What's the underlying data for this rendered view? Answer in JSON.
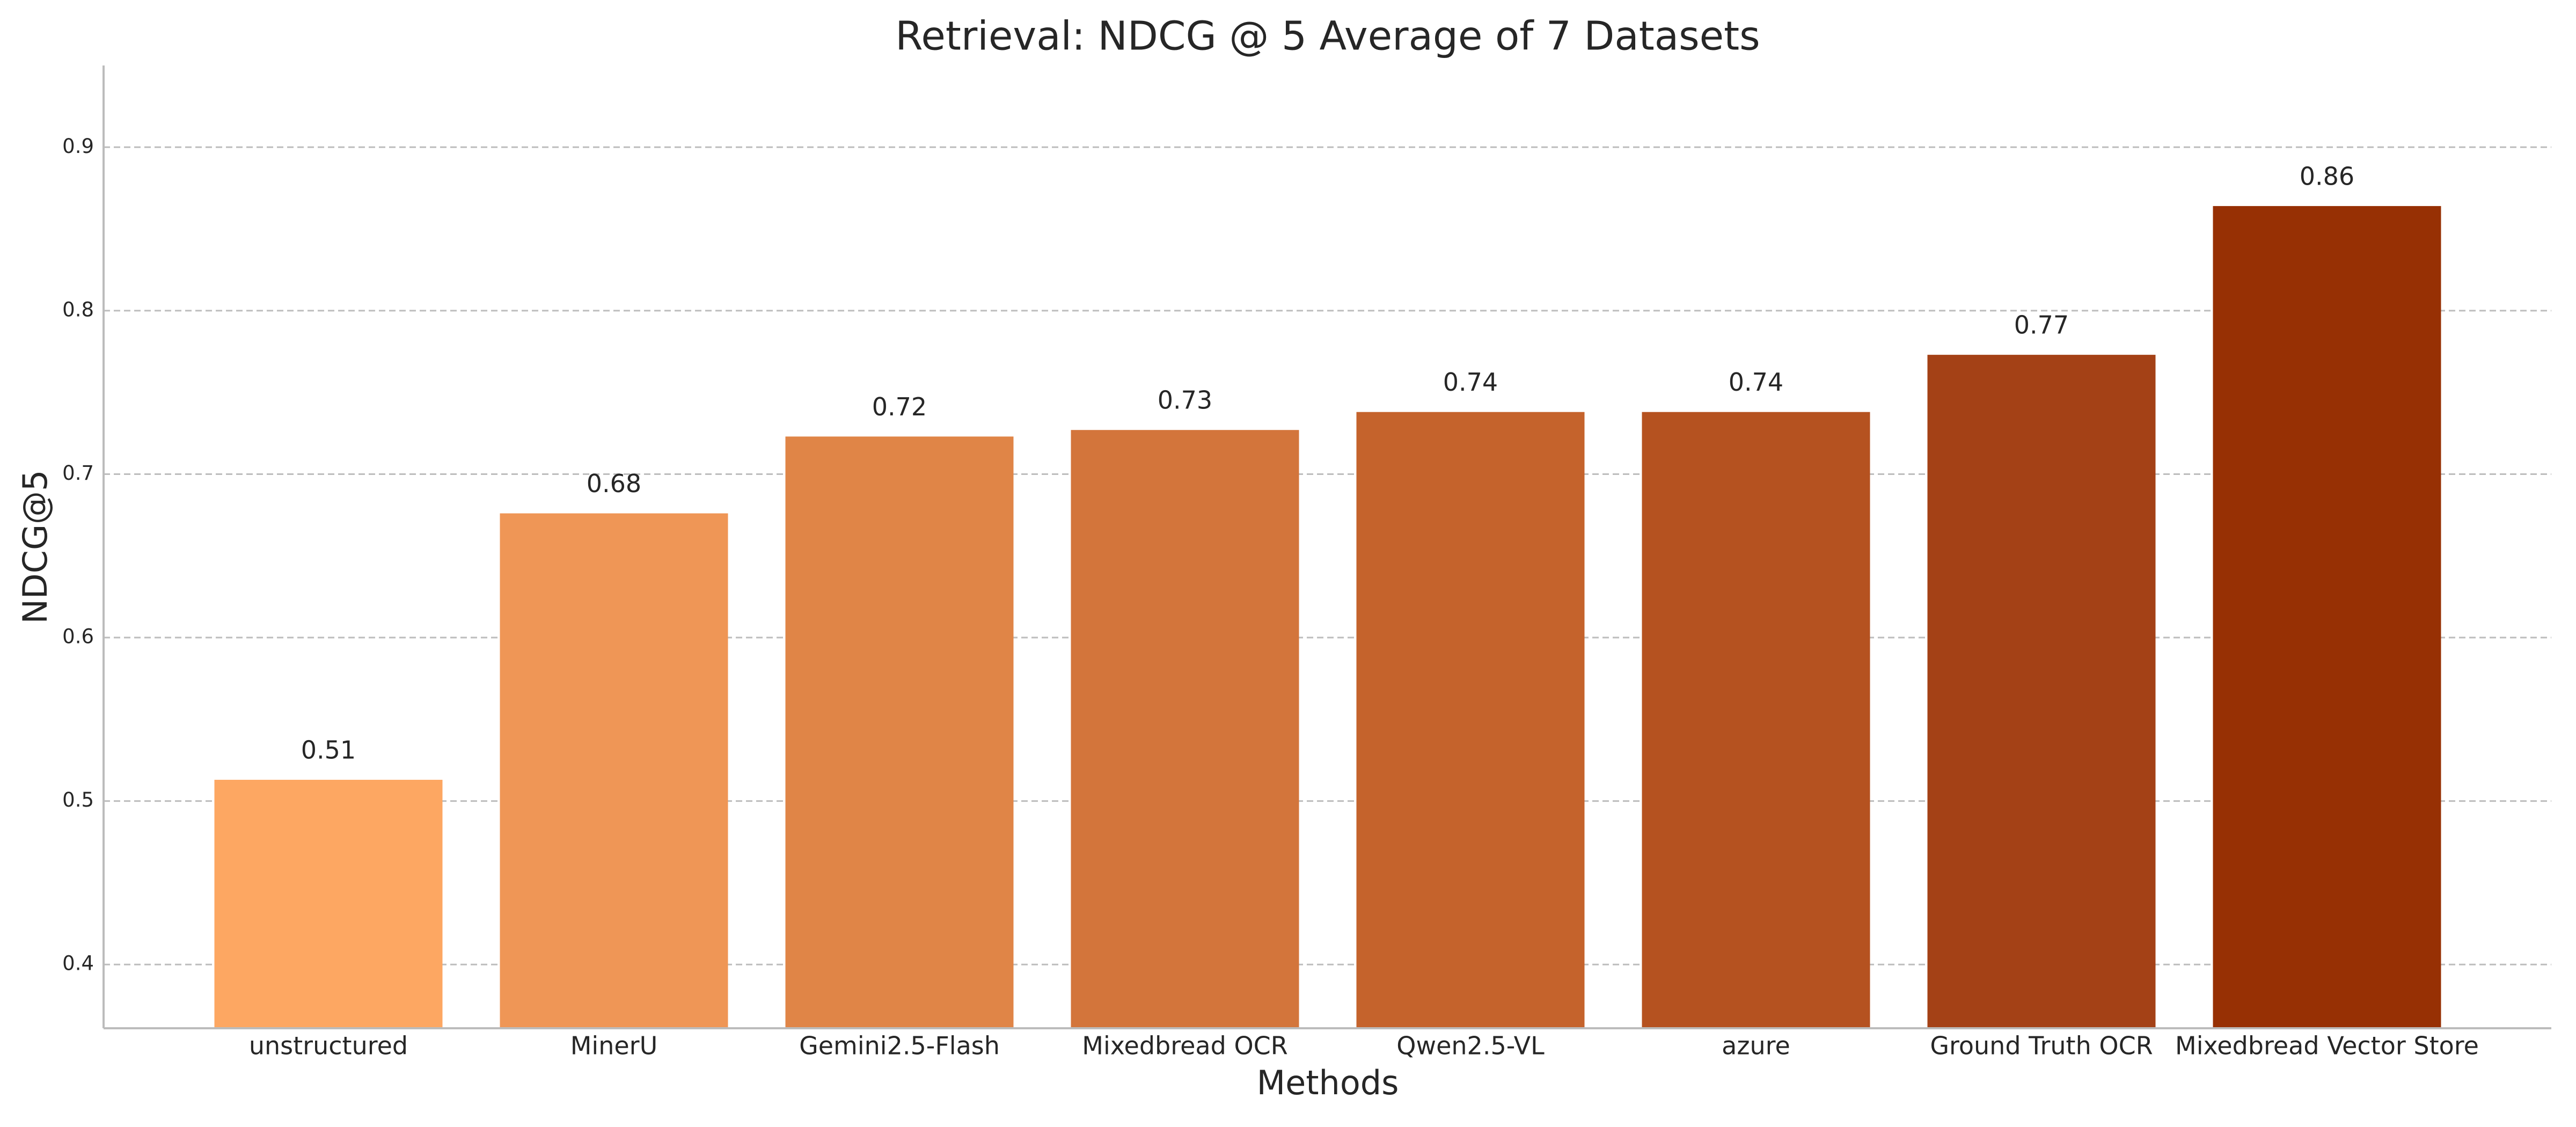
{
  "chart_data": {
    "type": "bar",
    "title": "Retrieval: NDCG @ 5 Average of 7 Datasets",
    "x_label": "Methods",
    "y_label": "NDCG@5",
    "categories": [
      "unstructured",
      "MinerU",
      "Gemini2.5-Flash",
      "Mixedbread OCR",
      "Qwen2.5-VL",
      "azure",
      "Ground Truth OCR",
      "Mixedbread Vector Store"
    ],
    "values": [
      0.513,
      0.676,
      0.723,
      0.727,
      0.738,
      0.738,
      0.773,
      0.864
    ],
    "value_labels": [
      "0.51",
      "0.68",
      "0.72",
      "0.73",
      "0.74",
      "0.74",
      "0.77",
      "0.86"
    ],
    "colors": [
      "#fda762",
      "#ef9656",
      "#e08547",
      "#d3753b",
      "#c5632c",
      "#b55220",
      "#a44116",
      "#973004"
    ],
    "ylim": [
      0.361,
      0.95
    ],
    "yticks": [
      0.4,
      0.5,
      0.6,
      0.7,
      0.8,
      0.9
    ],
    "grid": true
  }
}
